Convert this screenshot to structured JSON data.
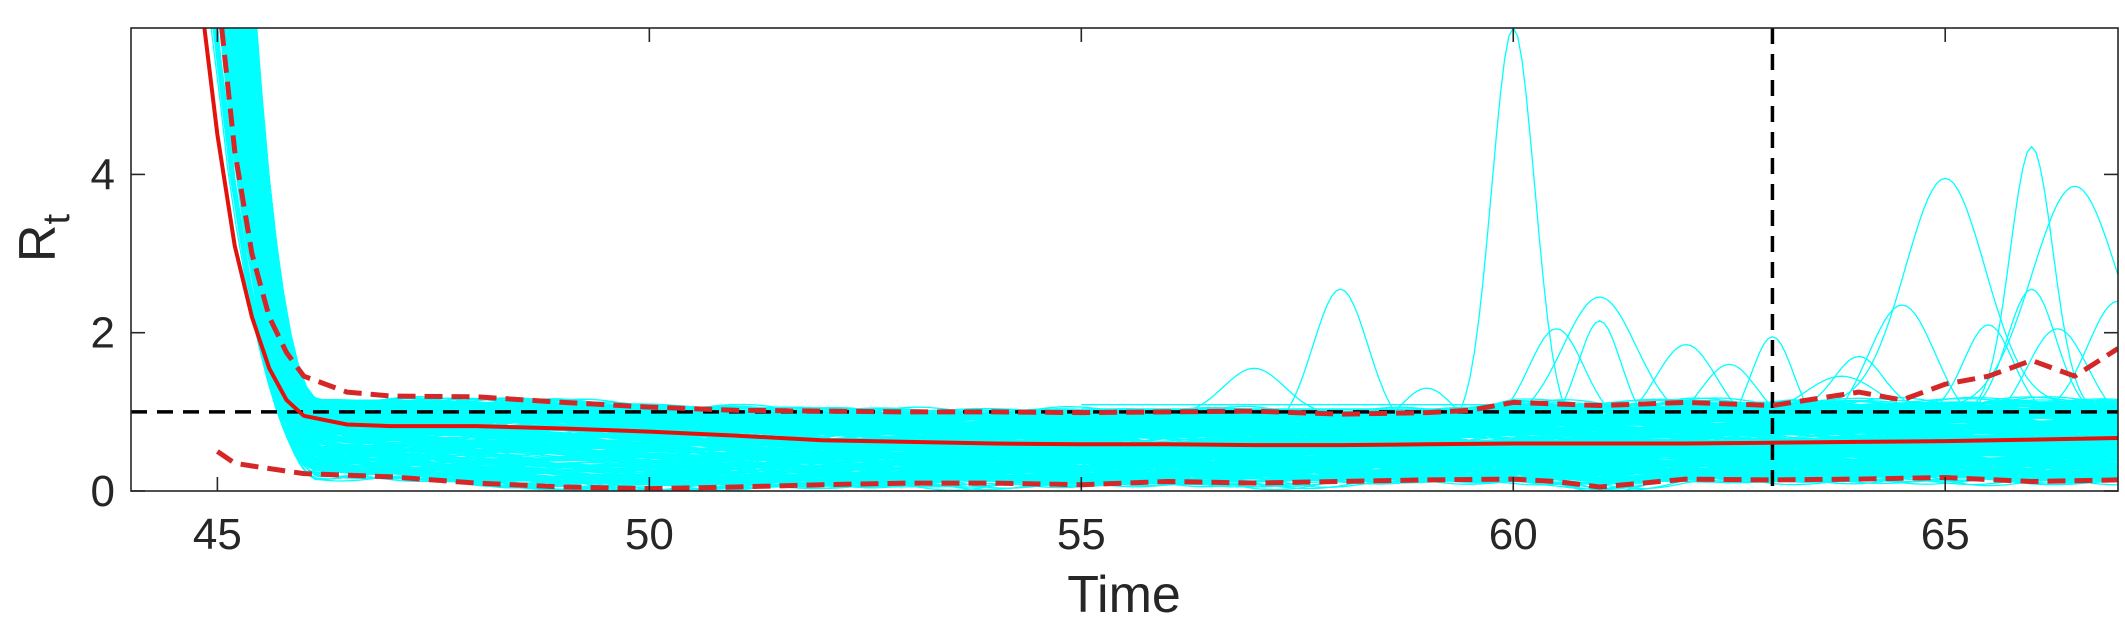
{
  "chart_data": {
    "type": "line",
    "xlabel": "Time",
    "ylabel": "R",
    "ylabel_subscript": "t",
    "xlim": [
      44,
      67
    ],
    "ylim": [
      0,
      5.85
    ],
    "xticks": [
      45,
      50,
      55,
      60,
      65
    ],
    "yticks": [
      0,
      2,
      4
    ],
    "xtick_labels": [
      "45",
      "50",
      "55",
      "60",
      "65"
    ],
    "ytick_labels": [
      "0",
      "2",
      "4"
    ],
    "grid": false,
    "legend": "none",
    "colors": {
      "samples": "#00ffff",
      "median": "#e3120b",
      "bounds": "#d62728",
      "reference": "#000000",
      "axis": "#262626"
    },
    "reference_lines": {
      "horizontal_y": 1,
      "vertical_x": 63
    },
    "series": [
      {
        "style": "solid",
        "x": [
          44.85,
          45.0,
          45.2,
          45.4,
          45.6,
          45.8,
          46.0,
          46.5,
          47,
          48,
          49,
          50,
          51,
          52,
          53,
          54,
          55,
          56,
          57,
          58,
          59,
          60,
          61,
          62,
          63,
          64,
          65,
          66,
          67
        ],
        "values": [
          5.85,
          4.5,
          3.1,
          2.2,
          1.55,
          1.15,
          0.95,
          0.84,
          0.82,
          0.82,
          0.79,
          0.75,
          0.7,
          0.64,
          0.62,
          0.6,
          0.59,
          0.59,
          0.58,
          0.58,
          0.59,
          0.6,
          0.6,
          0.6,
          0.61,
          0.62,
          0.63,
          0.65,
          0.67
        ]
      },
      {
        "style": "dashed",
        "x": [
          45.05,
          45.2,
          45.4,
          45.6,
          45.8,
          46.0,
          46.5,
          47,
          48,
          49,
          50,
          51,
          52,
          53,
          54,
          55,
          56,
          57,
          58,
          59,
          59.5,
          60,
          61,
          62,
          63,
          64,
          64.5,
          65,
          65.5,
          66,
          66.5,
          67
        ],
        "values": [
          5.85,
          4.3,
          3.0,
          2.2,
          1.75,
          1.45,
          1.25,
          1.2,
          1.19,
          1.12,
          1.06,
          1.02,
          1.01,
          1.0,
          1.0,
          0.99,
          1.0,
          1.01,
          0.97,
          0.99,
          1.02,
          1.12,
          1.08,
          1.12,
          1.08,
          1.25,
          1.15,
          1.35,
          1.45,
          1.65,
          1.45,
          1.8
        ]
      },
      {
        "style": "dashed",
        "x": [
          45.0,
          45.2,
          45.5,
          46.0,
          46.5,
          47,
          48,
          49,
          50,
          51,
          52,
          53,
          54,
          55,
          56,
          57,
          58,
          59,
          60,
          60.5,
          61,
          62,
          63,
          64,
          65,
          66,
          67
        ],
        "values": [
          0.5,
          0.35,
          0.3,
          0.22,
          0.2,
          0.18,
          0.1,
          0.05,
          0.03,
          0.05,
          0.08,
          0.1,
          0.1,
          0.08,
          0.12,
          0.1,
          0.12,
          0.14,
          0.15,
          0.12,
          0.05,
          0.15,
          0.14,
          0.15,
          0.17,
          0.12,
          0.14
        ]
      }
    ],
    "sample_traces": {
      "count": 320,
      "description_of_fan": "ensemble of cyan sample trajectories",
      "spikes": [
        {
          "center": 60.0,
          "height": 5.85,
          "width": 0.35
        },
        {
          "center": 58.0,
          "height": 2.55,
          "width": 0.45
        },
        {
          "center": 57.0,
          "height": 1.55,
          "width": 0.5
        },
        {
          "center": 61.0,
          "height": 2.45,
          "width": 0.6
        },
        {
          "center": 60.5,
          "height": 2.05,
          "width": 0.45
        },
        {
          "center": 61.0,
          "height": 2.15,
          "width": 0.35
        },
        {
          "center": 62.0,
          "height": 1.85,
          "width": 0.5
        },
        {
          "center": 63.0,
          "height": 1.95,
          "width": 0.35
        },
        {
          "center": 65.0,
          "height": 3.95,
          "width": 0.65
        },
        {
          "center": 66.0,
          "height": 4.35,
          "width": 0.35
        },
        {
          "center": 66.5,
          "height": 3.85,
          "width": 0.7
        },
        {
          "center": 66.0,
          "height": 2.55,
          "width": 0.4
        },
        {
          "center": 64.5,
          "height": 2.35,
          "width": 0.55
        },
        {
          "center": 65.5,
          "height": 2.1,
          "width": 0.4
        },
        {
          "center": 67.0,
          "height": 2.4,
          "width": 0.5
        },
        {
          "center": 59.0,
          "height": 1.3,
          "width": 0.4
        },
        {
          "center": 62.5,
          "height": 1.6,
          "width": 0.45
        },
        {
          "center": 64.0,
          "height": 1.7,
          "width": 0.4
        },
        {
          "center": 66.3,
          "height": 2.05,
          "width": 0.5
        },
        {
          "center": 63.8,
          "height": 1.45,
          "width": 0.6
        }
      ]
    }
  }
}
